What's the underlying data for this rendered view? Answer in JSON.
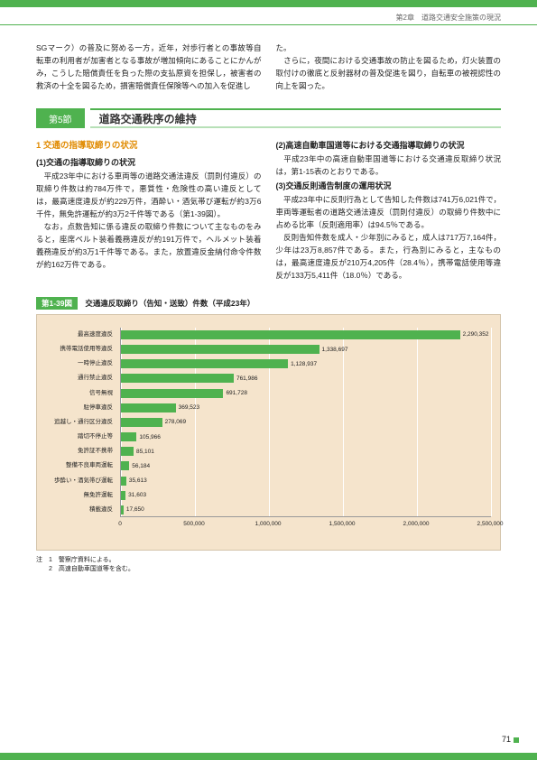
{
  "chapter_header": "第2章　道路交通安全施策の現況",
  "intro": {
    "left": "SGマーク）の普及に努める一方，近年，対歩行者との事故等自転車の利用者が加害者となる事故が増加傾向にあることにかんがみ，こうした賠償責任を負った際の支払原資を担保し，被害者の救済の十全を図るため，損害賠償責任保険等への加入を促進し",
    "right": "た。\n　さらに，夜間における交通事故の防止を図るため，灯火装置の取付けの徹底と反射器材の普及促進を図り，自転車の被視認性の向上を図った。"
  },
  "section": {
    "num": "第5節",
    "title": "道路交通秩序の維持"
  },
  "body": {
    "left_h1": "1 交通の指導取締りの状況",
    "left_h2": "(1)交通の指導取締りの状況",
    "left_p1": "　平成23年中における車両等の道路交通法違反（罰則付違反）の取締り件数は約784万件で，悪質性・危険性の高い違反としては，最高速度違反が約229万件，酒酔い・酒気帯び運転が約3万6千件，無免許運転が約3万2千件等である（第1-39図）。\n　なお，点数告知に係る違反の取締り件数について主なものをみると，座席ベルト装着義務違反が約191万件で，ヘルメット装着義務違反が約3万1千件等である。また，放置違反金納付命令件数が約162万件である。",
    "right_h2a": "(2)高速自動車国道等における交通指導取締りの状況",
    "right_p2a": "　平成23年中の高速自動車国道等における交通違反取締り状況は，第1-15表のとおりである。",
    "right_h2b": "(3)交通反則通告制度の運用状況",
    "right_p2b": "　平成23年中に反則行為として告知した件数は741万6,021件で，車両等運転者の道路交通法違反（罰則付違反）の取締り件数中に占める比率（反則適用率）は94.5％である。\n　反則告知件数を成人・少年別にみると，成人は717万7,164件，少年は23万8,857件である。また，行為別にみると，主なものは，最高速度違反が210万4,205件（28.4％），携帯電話使用等違反が133万5,411件（18.0％）である。"
  },
  "chart": {
    "label": "第1-39図",
    "title": "交通違反取締り（告知・送致）件数（平成23年）",
    "categories": [
      "最高速度違反",
      "携帯電話使用等違反",
      "一時停止違反",
      "通行禁止違反",
      "信号無視",
      "駐停車違反",
      "追越し・通行区分違反",
      "踏切不停止等",
      "免許証不携帯",
      "整備不良車両運転",
      "歩酔い・酒気帯び運転",
      "無免許運転",
      "積載違反"
    ],
    "values": [
      2290352,
      1338697,
      1128937,
      761986,
      691728,
      369523,
      278069,
      105966,
      85101,
      56184,
      35613,
      31603,
      17650
    ],
    "value_labels": [
      "2,290,352",
      "1,338,697",
      "1,128,937",
      "761,986",
      "691,728",
      "369,523",
      "278,069",
      "105,966",
      "85,101",
      "56,184",
      "35,613",
      "31,603",
      "17,650"
    ],
    "xmax": 2500000,
    "xticks": [
      0,
      500000,
      1000000,
      1500000,
      2000000,
      2500000
    ],
    "xtick_labels": [
      "0",
      "500,000",
      "1,000,000",
      "1,500,000",
      "2,000,000",
      "2,500,000"
    ],
    "bar_color": "#4fb24f",
    "bg_color": "#f5e4cc"
  },
  "footnotes": {
    "line1": "注　1　警察庁資料による。",
    "line2": "　　2　高速自動車国道等を含む。"
  },
  "page_number": "71"
}
